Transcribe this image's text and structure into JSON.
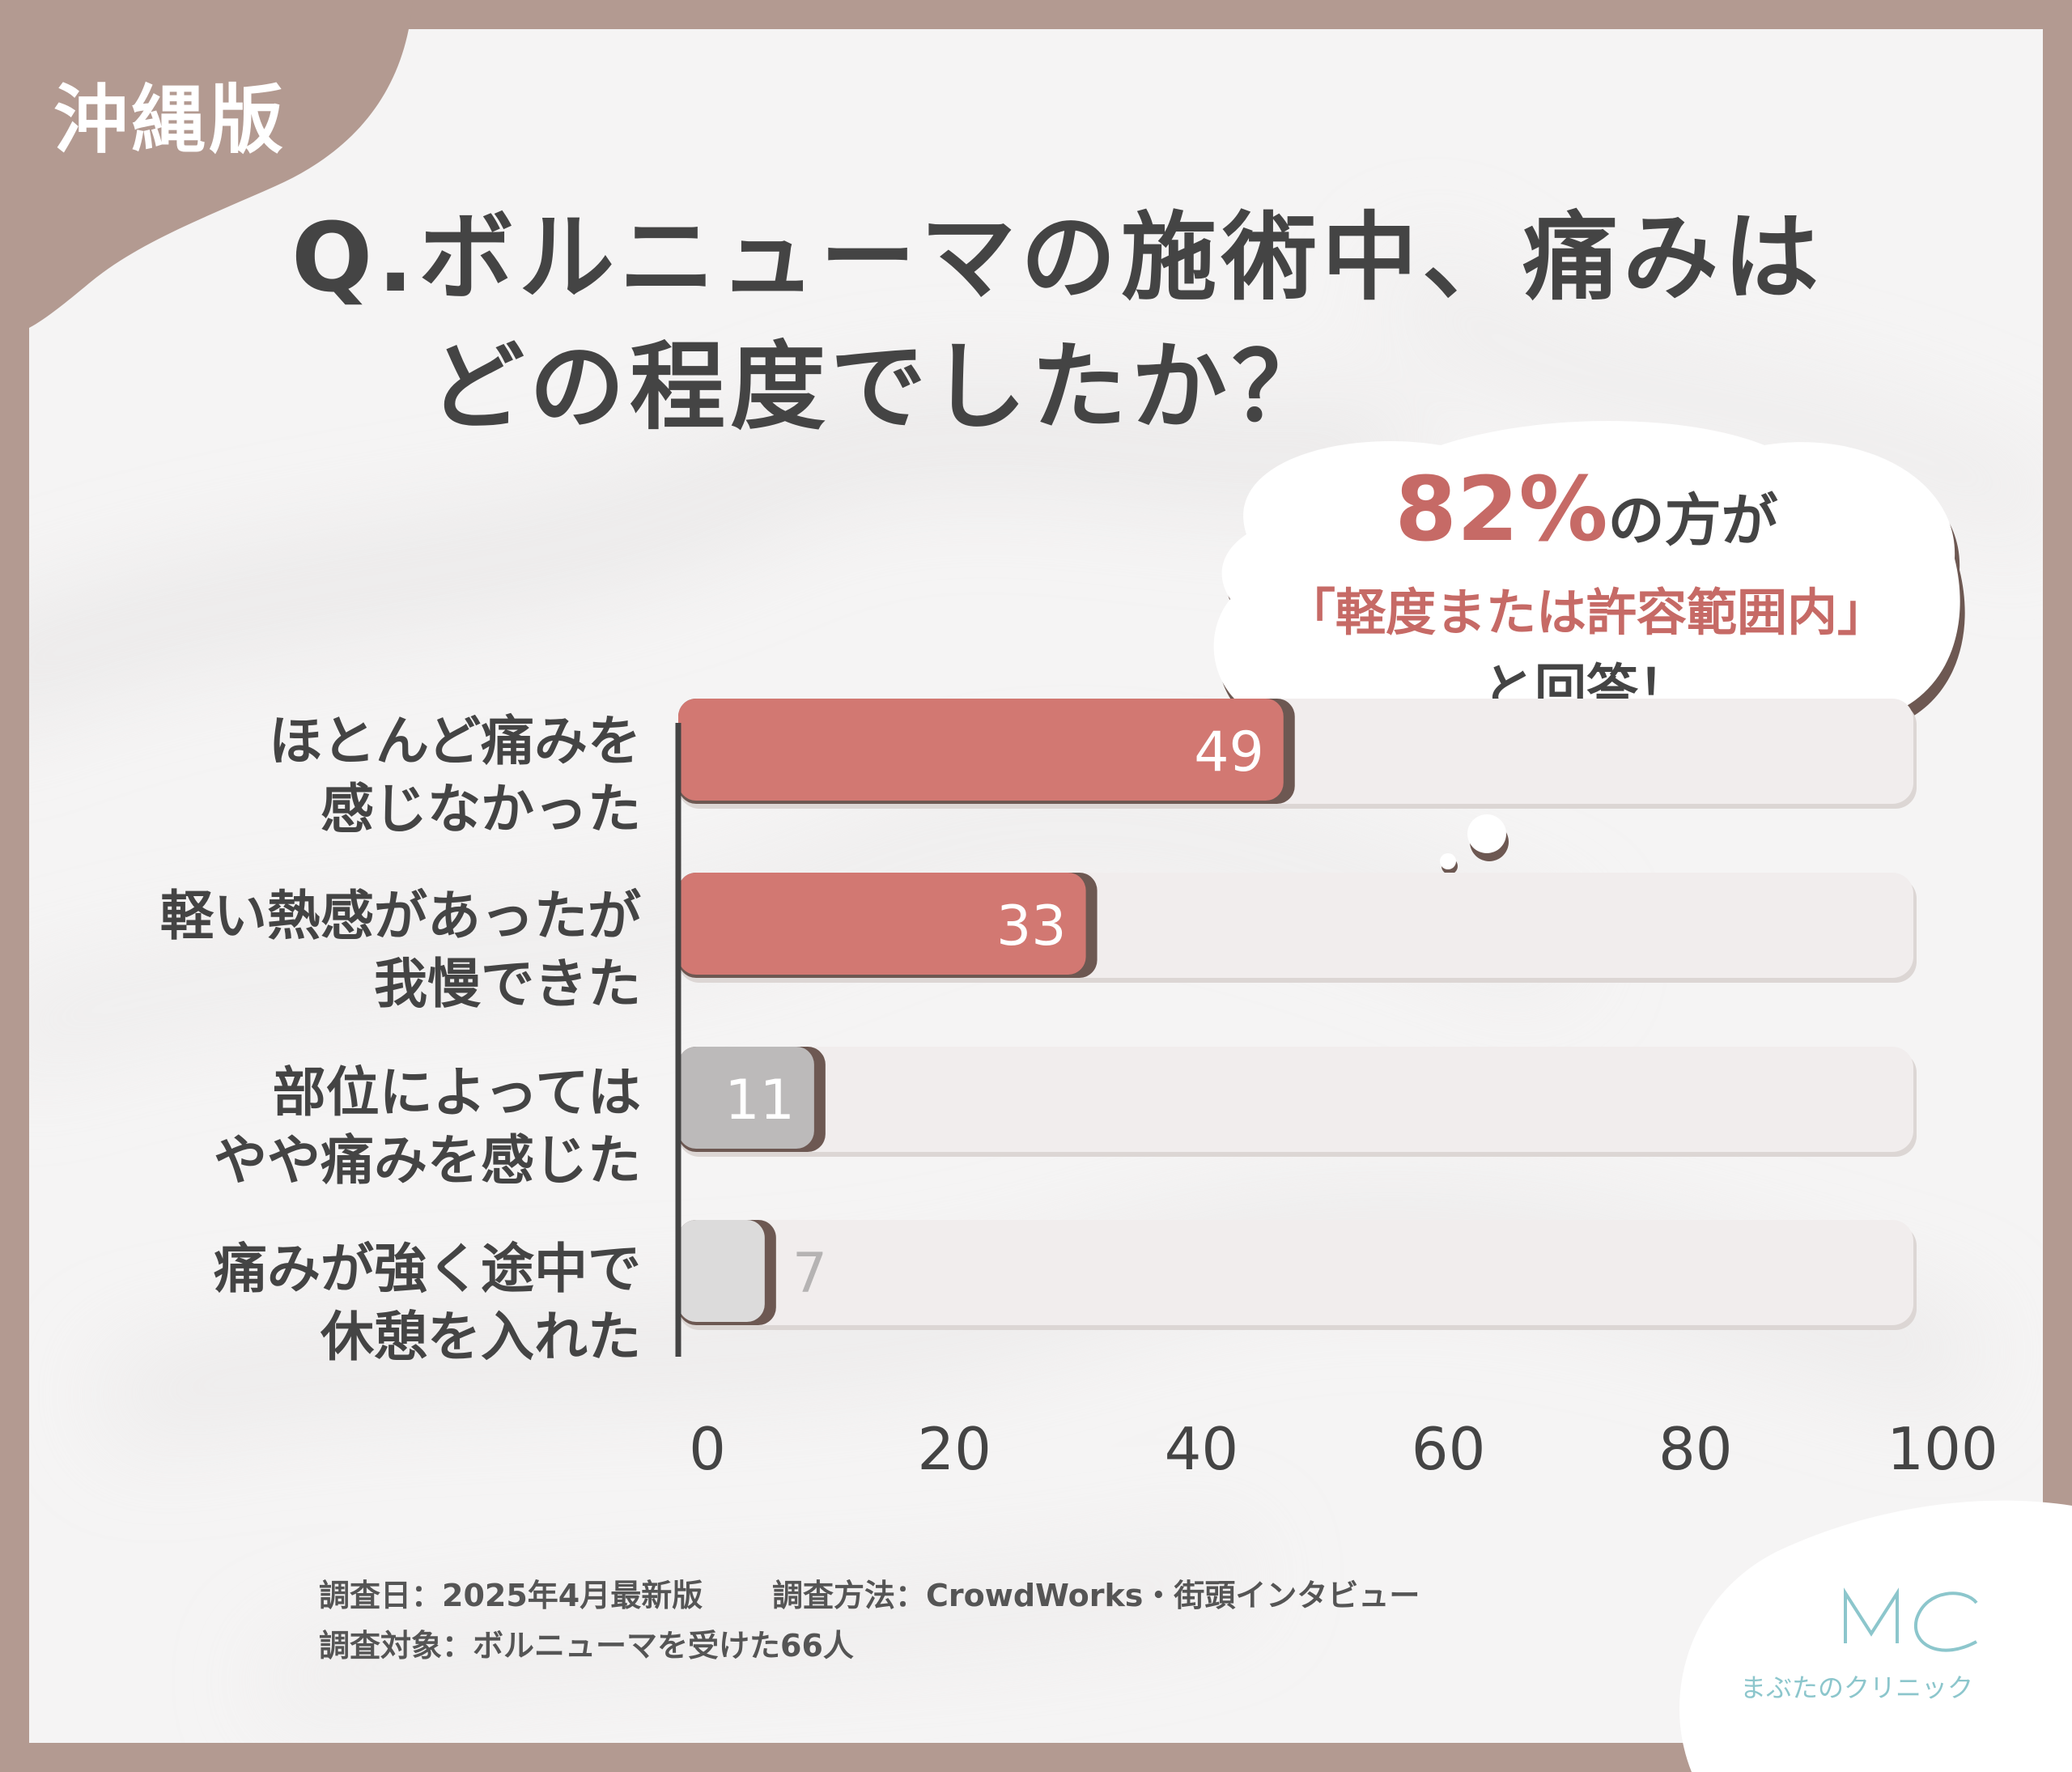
{
  "region_label": "沖縄版",
  "title": {
    "line1": "Q.ボルニューマの施術中、痛みは",
    "line2": "どの程度でしたか？"
  },
  "callout": {
    "percent": "82%",
    "line1_rest": "の方が",
    "line2": "「軽度または許容範囲内」",
    "line3": "と回答！"
  },
  "footer": {
    "survey_date": "調査日：2025年4月最新版",
    "survey_method": "調査方法：CrowdWorks・街頭インタビュー",
    "survey_target": "調査対象：ボルニューマを受けた66人"
  },
  "logo": {
    "mark": "MC",
    "name": "まぶたのクリニック"
  },
  "colors": {
    "frame": "#b39a91",
    "highlight": "#d27872",
    "muted_dark": "#bcbaba",
    "muted_light": "#dcdbdb",
    "track": "#f1eded",
    "text": "#444444",
    "accent_text": "#c66a66",
    "logo": "#8cc6cc"
  },
  "chart_data": {
    "type": "bar",
    "orientation": "horizontal",
    "categories": [
      "ほとんど痛みを感じなかった",
      "軽い熱感があったが我慢できた",
      "部位によってはやや痛みを感じた",
      "痛みが強く途中で休憩を入れた"
    ],
    "category_lines": [
      [
        "ほとんど痛みを",
        "感じなかった"
      ],
      [
        "軽い熱感があったが",
        "我慢できた"
      ],
      [
        "部位によっては",
        "やや痛みを感じた"
      ],
      [
        "痛みが強く途中で",
        "休憩を入れた"
      ]
    ],
    "values": [
      49,
      33,
      11,
      7
    ],
    "value_labels": [
      "49",
      "33",
      "11",
      "7"
    ],
    "xlim": [
      0,
      100
    ],
    "xticks": [
      "0",
      "20",
      "40",
      "60",
      "80",
      "100"
    ],
    "grid": false,
    "legend": "none"
  }
}
